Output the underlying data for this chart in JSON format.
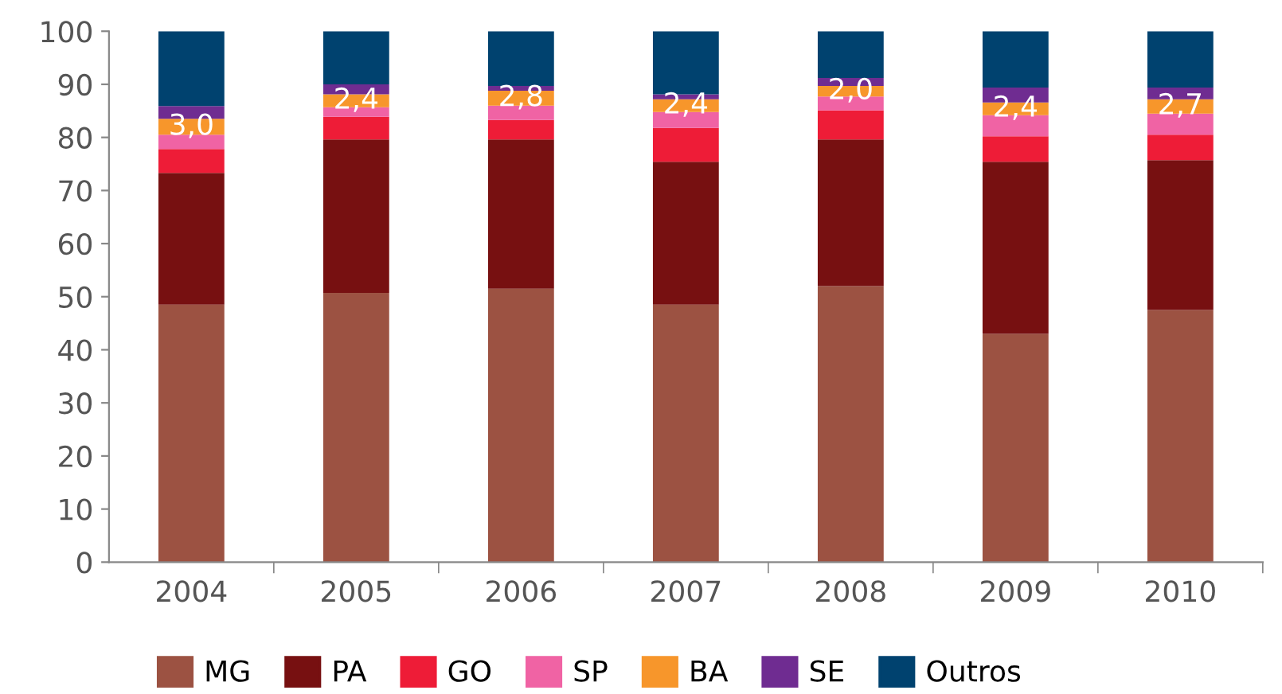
{
  "chart_data": {
    "type": "bar",
    "stacked": true,
    "categories": [
      "2004",
      "2005",
      "2006",
      "2007",
      "2008",
      "2009",
      "2010"
    ],
    "series": [
      {
        "name": "MG",
        "color": "#9c5242",
        "values": [
          48.5,
          50.7,
          51.5,
          48.5,
          52.0,
          43.0,
          47.5
        ]
      },
      {
        "name": "PA",
        "color": "#771011",
        "values": [
          24.8,
          28.9,
          28.1,
          26.9,
          27.6,
          32.4,
          28.2
        ]
      },
      {
        "name": "GO",
        "color": "#ee1c37",
        "values": [
          4.5,
          4.3,
          3.7,
          6.4,
          5.5,
          4.8,
          4.8
        ]
      },
      {
        "name": "SP",
        "color": "#f063a4",
        "values": [
          2.7,
          1.8,
          2.7,
          3.0,
          2.6,
          4.0,
          4.0
        ]
      },
      {
        "name": "BA",
        "color": "#f7962b",
        "values": [
          3.0,
          2.4,
          2.8,
          2.4,
          2.0,
          2.4,
          2.7
        ],
        "value_labels": [
          "3,0",
          "2,4",
          "2,8",
          "2,4",
          "2,0",
          "2,4",
          "2,7"
        ]
      },
      {
        "name": "SE",
        "color": "#6f2c91",
        "values": [
          2.4,
          1.9,
          0.9,
          0.9,
          1.5,
          2.8,
          2.2
        ]
      },
      {
        "name": "Outros",
        "color": "#00426f",
        "values": [
          14.1,
          10.0,
          10.3,
          11.9,
          8.8,
          10.6,
          10.6
        ]
      }
    ],
    "ylim": [
      0,
      100
    ],
    "yticks": [
      0,
      10,
      20,
      30,
      40,
      50,
      60,
      70,
      80,
      90,
      100
    ],
    "grid": false,
    "legend": "bottom"
  }
}
